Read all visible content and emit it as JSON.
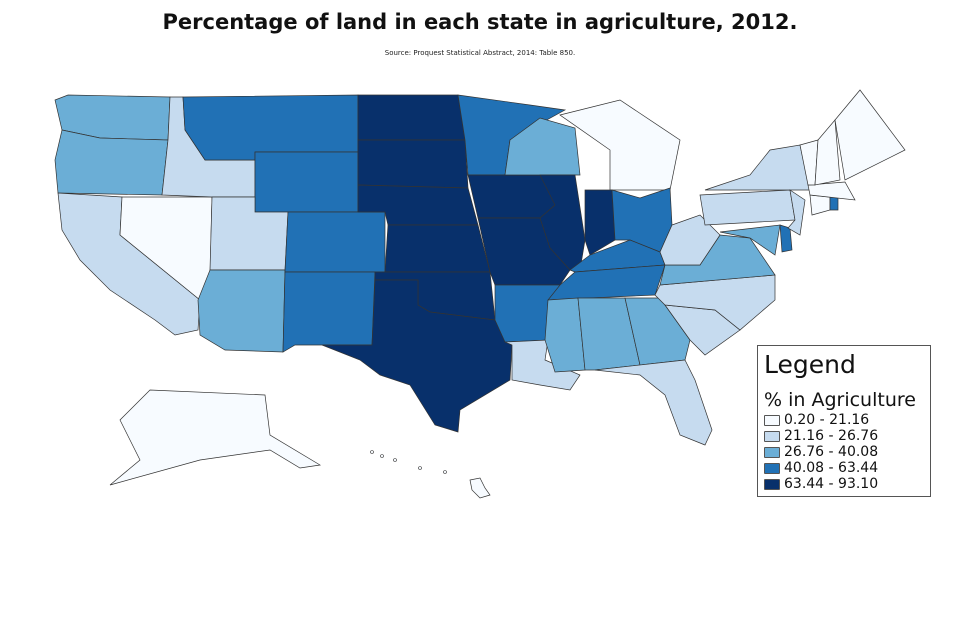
{
  "title": "Percentage of land in each state in agriculture, 2012.",
  "source": "Source: Proquest Statistical Abstract, 2014: Table 850.",
  "legend": {
    "title": "Legend",
    "subtitle": "% in Agriculture",
    "classes": [
      {
        "label": "0.20 - 21.16",
        "color": "#f7fbff"
      },
      {
        "label": "21.16 - 26.76",
        "color": "#c6dbef"
      },
      {
        "label": "26.76 - 40.08",
        "color": "#6baed6"
      },
      {
        "label": "40.08 - 63.44",
        "color": "#2171b5"
      },
      {
        "label": "63.44 - 93.10",
        "color": "#08306b"
      }
    ]
  },
  "states": {
    "WA": 2,
    "OR": 2,
    "CA": 1,
    "NV": 0,
    "ID": 1,
    "MT": 3,
    "WY": 3,
    "UT": 1,
    "AZ": 2,
    "CO": 3,
    "NM": 3,
    "ND": 4,
    "SD": 4,
    "NE": 4,
    "KS": 4,
    "OK": 4,
    "TX": 4,
    "MN": 3,
    "IA": 4,
    "MO": 4,
    "AR": 3,
    "LA": 1,
    "WI": 2,
    "IL": 4,
    "MI": 0,
    "IN": 4,
    "OH": 3,
    "KY": 3,
    "TN": 3,
    "MS": 2,
    "AL": 2,
    "GA": 2,
    "FL": 1,
    "SC": 1,
    "NC": 1,
    "VA": 2,
    "WV": 1,
    "MD": 2,
    "DE": 3,
    "PA": 1,
    "NY": 1,
    "NJ": 1,
    "CT": 0,
    "RI": 3,
    "MA": 0,
    "VT": 0,
    "NH": 0,
    "ME": 0,
    "AK": 0,
    "HI": 0
  }
}
